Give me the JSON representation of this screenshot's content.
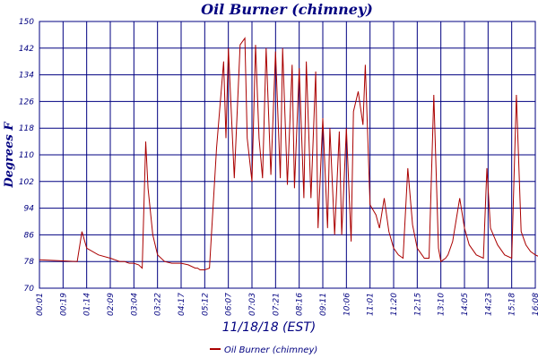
{
  "chart_data": {
    "type": "line",
    "title": "Oil Burner (chimney)",
    "xlabel": "11/18/18 (EST)",
    "ylabel": "Degrees F",
    "ylim": [
      70,
      150
    ],
    "yticks": [
      70,
      78,
      86,
      94,
      102,
      110,
      118,
      126,
      134,
      142,
      150
    ],
    "xticks": [
      "00:01",
      "00:19",
      "01:14",
      "02:09",
      "03:04",
      "03:22",
      "04:17",
      "05:12",
      "06:07",
      "07:03",
      "07:21",
      "08:16",
      "09:11",
      "10:06",
      "11:01",
      "11:20",
      "12:15",
      "13:10",
      "14:05",
      "14:23",
      "15:18",
      "16:08"
    ],
    "grid": true,
    "legend": "bottom-left",
    "colors": {
      "series": "#aa0000",
      "grid": "#000080",
      "text": "#000080"
    },
    "series": [
      {
        "name": "Oil Burner (chimney)",
        "x": [
          0,
          1,
          1.6,
          1.8,
          2.0,
          2.5,
          3.0,
          3.2,
          3.4,
          3.6,
          3.8,
          4.0,
          4.2,
          4.35,
          4.5,
          4.6,
          4.8,
          5.0,
          5.3,
          5.6,
          6.0,
          6.3,
          6.6,
          6.7,
          6.8,
          7.0,
          7.2,
          7.5,
          7.8,
          7.9,
          8.0,
          8.25,
          8.5,
          8.7,
          8.8,
          9.0,
          9.15,
          9.3,
          9.45,
          9.6,
          9.8,
          10.0,
          10.2,
          10.3,
          10.5,
          10.7,
          10.8,
          11.0,
          11.2,
          11.3,
          11.5,
          11.7,
          11.8,
          12.0,
          12.2,
          12.3,
          12.5,
          12.7,
          12.8,
          13.0,
          13.2,
          13.3,
          13.5,
          13.7,
          13.8,
          14.0,
          14.25,
          14.4,
          14.6,
          14.8,
          15.0,
          15.2,
          15.4,
          15.6,
          15.8,
          16.0,
          16.2,
          16.3,
          16.5,
          16.7,
          16.9,
          17.0,
          17.2,
          17.3,
          17.5,
          17.8,
          18.0,
          18.2,
          18.5,
          18.8,
          18.95,
          19.1,
          19.4,
          19.7,
          20.0,
          20.2,
          20.4,
          20.6,
          20.8,
          21.0,
          21.3,
          21.6,
          22.0
        ],
        "y": [
          78.5,
          78.2,
          78,
          87,
          82,
          80,
          79,
          78.5,
          78,
          78,
          77.5,
          77.5,
          77,
          76,
          114,
          100,
          86,
          80,
          78,
          77.5,
          77.5,
          77,
          76,
          76,
          75.5,
          75.5,
          76,
          112,
          138,
          115,
          142,
          103,
          143,
          145,
          115,
          102,
          143,
          115,
          103,
          142,
          104,
          141,
          103,
          142,
          101,
          137,
          100,
          136,
          97,
          138,
          97,
          135,
          88,
          121,
          88,
          118,
          86,
          117,
          86,
          118,
          84,
          123,
          129,
          119,
          137,
          95,
          92,
          88,
          97,
          87,
          82,
          80,
          79,
          106,
          89,
          82,
          80,
          79,
          79,
          128,
          82,
          78,
          79,
          80,
          84,
          97,
          88,
          83,
          80,
          79,
          106,
          88,
          83,
          80,
          79,
          128,
          87,
          83,
          81,
          80,
          79,
          78,
          78
        ]
      }
    ]
  }
}
